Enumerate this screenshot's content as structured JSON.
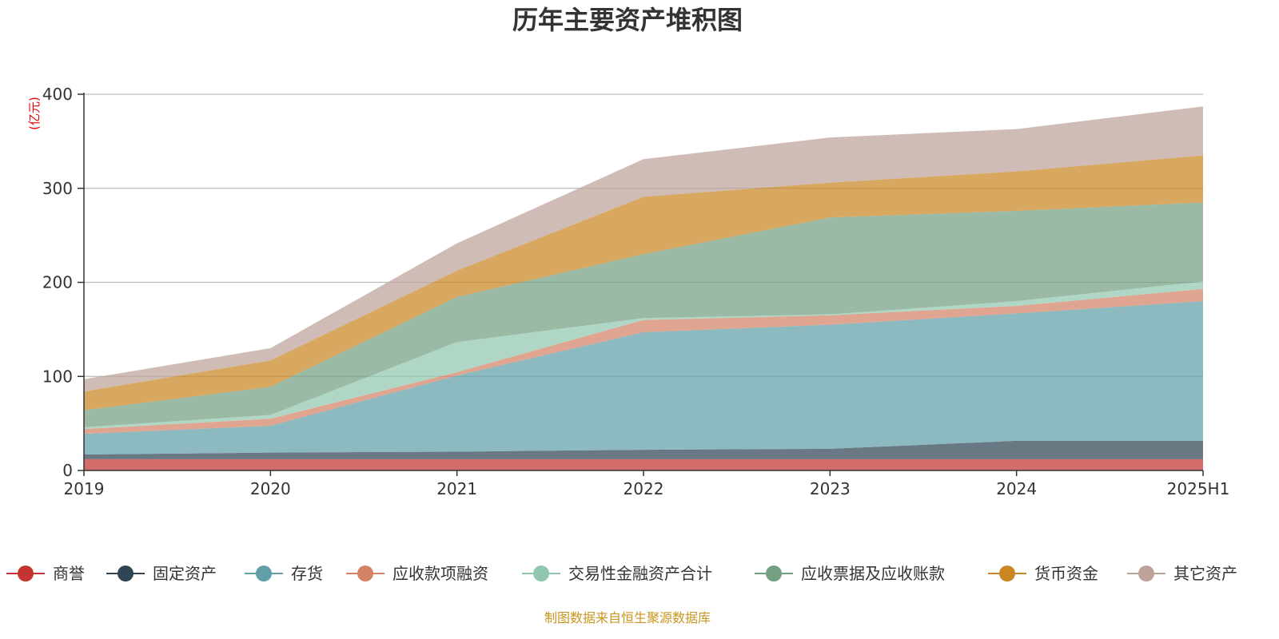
{
  "chart_data": {
    "type": "area",
    "stacked": true,
    "title": "历年主要资产堆积图",
    "ylabel": "(亿元)",
    "xlabel": "",
    "categories": [
      "2019",
      "2020",
      "2021",
      "2022",
      "2023",
      "2024",
      "2025H1"
    ],
    "ylim": [
      0,
      400
    ],
    "yticks": [
      "0",
      "100",
      "200",
      "300",
      "400"
    ],
    "grid": true,
    "legend_position": "bottom",
    "series": [
      {
        "name": "商誉",
        "color": "#c23531",
        "values": [
          12,
          12,
          12,
          12,
          12,
          12,
          12
        ]
      },
      {
        "name": "固定资产",
        "color": "#2f4554",
        "values": [
          5,
          7,
          8,
          10,
          11,
          19.5,
          19.5
        ]
      },
      {
        "name": "存货",
        "color": "#61a0a8",
        "values": [
          22,
          28.5,
          81,
          125,
          132,
          135.5,
          148.5
        ]
      },
      {
        "name": "应收款项融资",
        "color": "#d48265",
        "values": [
          5,
          7.5,
          3.5,
          13,
          10,
          8,
          13
        ]
      },
      {
        "name": "交易性金融资产合计",
        "color": "#91c7ae",
        "values": [
          2,
          4,
          32,
          2,
          1,
          5,
          8
        ]
      },
      {
        "name": "应收票据及应收账款",
        "color": "#749f83",
        "values": [
          18,
          30,
          48,
          68,
          103,
          96,
          84
        ]
      },
      {
        "name": "货币资金",
        "color": "#ca8622",
        "values": [
          20,
          28,
          28,
          61,
          37,
          42,
          50
        ]
      },
      {
        "name": "其它资产",
        "color": "#bda29a",
        "values": [
          13,
          13,
          29,
          40,
          48,
          45,
          52
        ]
      }
    ]
  },
  "source": "制图数据来自恒生聚源数据库"
}
